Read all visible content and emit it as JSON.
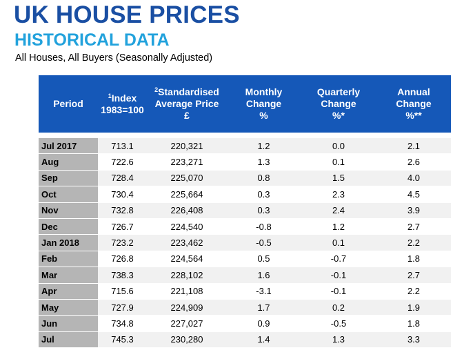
{
  "header": {
    "title": "UK HOUSE PRICES",
    "subtitle": "HISTORICAL DATA",
    "caption": "All Houses, All Buyers (Seasonally Adjusted)"
  },
  "table": {
    "columns": [
      {
        "lines": [
          "Period"
        ]
      },
      {
        "sup": "1",
        "lines": [
          "Index",
          "1983=100"
        ]
      },
      {
        "sup": "2",
        "lines": [
          "Standardised",
          "Average Price",
          "£"
        ]
      },
      {
        "lines": [
          "Monthly",
          "Change",
          "%"
        ]
      },
      {
        "lines": [
          "Quarterly",
          "Change",
          "%*"
        ]
      },
      {
        "lines": [
          "Annual",
          "Change",
          "%**"
        ]
      }
    ],
    "rows": [
      {
        "period": "Jul 2017",
        "index": "713.1",
        "price": "220,321",
        "monthly": "1.2",
        "quarterly": "0.0",
        "annual": "2.1"
      },
      {
        "period": "Aug",
        "index": "722.6",
        "price": "223,271",
        "monthly": "1.3",
        "quarterly": "0.1",
        "annual": "2.6"
      },
      {
        "period": "Sep",
        "index": "728.4",
        "price": "225,070",
        "monthly": "0.8",
        "quarterly": "1.5",
        "annual": "4.0"
      },
      {
        "period": "Oct",
        "index": "730.4",
        "price": "225,664",
        "monthly": "0.3",
        "quarterly": "2.3",
        "annual": "4.5"
      },
      {
        "period": "Nov",
        "index": "732.8",
        "price": "226,408",
        "monthly": "0.3",
        "quarterly": "2.4",
        "annual": "3.9"
      },
      {
        "period": "Dec",
        "index": "726.7",
        "price": "224,540",
        "monthly": "-0.8",
        "quarterly": "1.2",
        "annual": "2.7"
      },
      {
        "period": "Jan 2018",
        "index": "723.2",
        "price": "223,462",
        "monthly": "-0.5",
        "quarterly": "0.1",
        "annual": "2.2"
      },
      {
        "period": "Feb",
        "index": "726.8",
        "price": "224,564",
        "monthly": "0.5",
        "quarterly": "-0.7",
        "annual": "1.8"
      },
      {
        "period": "Mar",
        "index": "738.3",
        "price": "228,102",
        "monthly": "1.6",
        "quarterly": "-0.1",
        "annual": "2.7"
      },
      {
        "period": "Apr",
        "index": "715.6",
        "price": "221,108",
        "monthly": "-3.1",
        "quarterly": "-0.1",
        "annual": "2.2"
      },
      {
        "period": "May",
        "index": "727.9",
        "price": "224,909",
        "monthly": "1.7",
        "quarterly": "0.2",
        "annual": "1.9"
      },
      {
        "period": "Jun",
        "index": "734.8",
        "price": "227,027",
        "monthly": "0.9",
        "quarterly": "-0.5",
        "annual": "1.8"
      },
      {
        "period": "Jul",
        "index": "745.3",
        "price": "230,280",
        "monthly": "1.4",
        "quarterly": "1.3",
        "annual": "3.3"
      }
    ]
  }
}
